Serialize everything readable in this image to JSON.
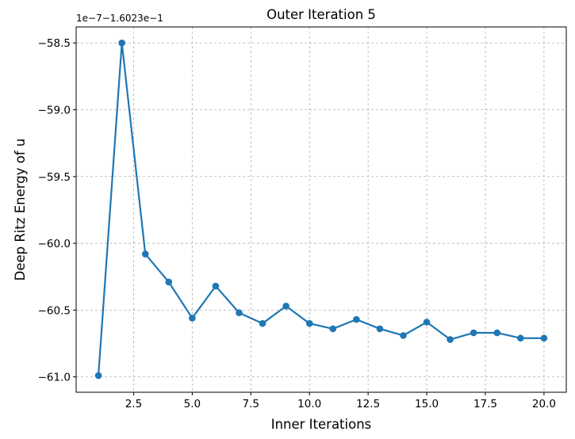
{
  "chart_data": {
    "type": "line",
    "title": "Outer Iteration 5",
    "xlabel": "Inner Iterations",
    "ylabel": "Deep Ritz Energy of u",
    "offset_text": "1e−7−1.6023e−1",
    "xlim": [
      0.05,
      20.95
    ],
    "ylim": [
      -61.115,
      -58.38
    ],
    "x_ticks": [
      2.5,
      5.0,
      7.5,
      10.0,
      12.5,
      15.0,
      17.5,
      20.0
    ],
    "x_tick_labels": [
      "2.5",
      "5.0",
      "7.5",
      "10.0",
      "12.5",
      "15.0",
      "17.5",
      "20.0"
    ],
    "y_ticks": [
      -58.5,
      -59.0,
      -59.5,
      -60.0,
      -60.5,
      -61.0
    ],
    "y_tick_labels": [
      "−58.5",
      "−59.0",
      "−59.5",
      "−60.0",
      "−60.5",
      "−61.0"
    ],
    "grid": true,
    "grid_style": "dashed",
    "line_color": "#1f77b4",
    "series": [
      {
        "x": [
          1,
          2,
          3,
          4,
          5,
          6,
          7,
          8,
          9,
          10,
          11,
          12,
          13,
          14,
          15,
          16,
          17,
          18,
          19,
          20
        ],
        "values": [
          -60.99,
          -58.5,
          -60.08,
          -60.29,
          -60.56,
          -60.32,
          -60.52,
          -60.6,
          -60.47,
          -60.6,
          -60.64,
          -60.57,
          -60.64,
          -60.69,
          -60.59,
          -60.72,
          -60.67,
          -60.67,
          -60.71,
          -60.71
        ]
      }
    ]
  }
}
